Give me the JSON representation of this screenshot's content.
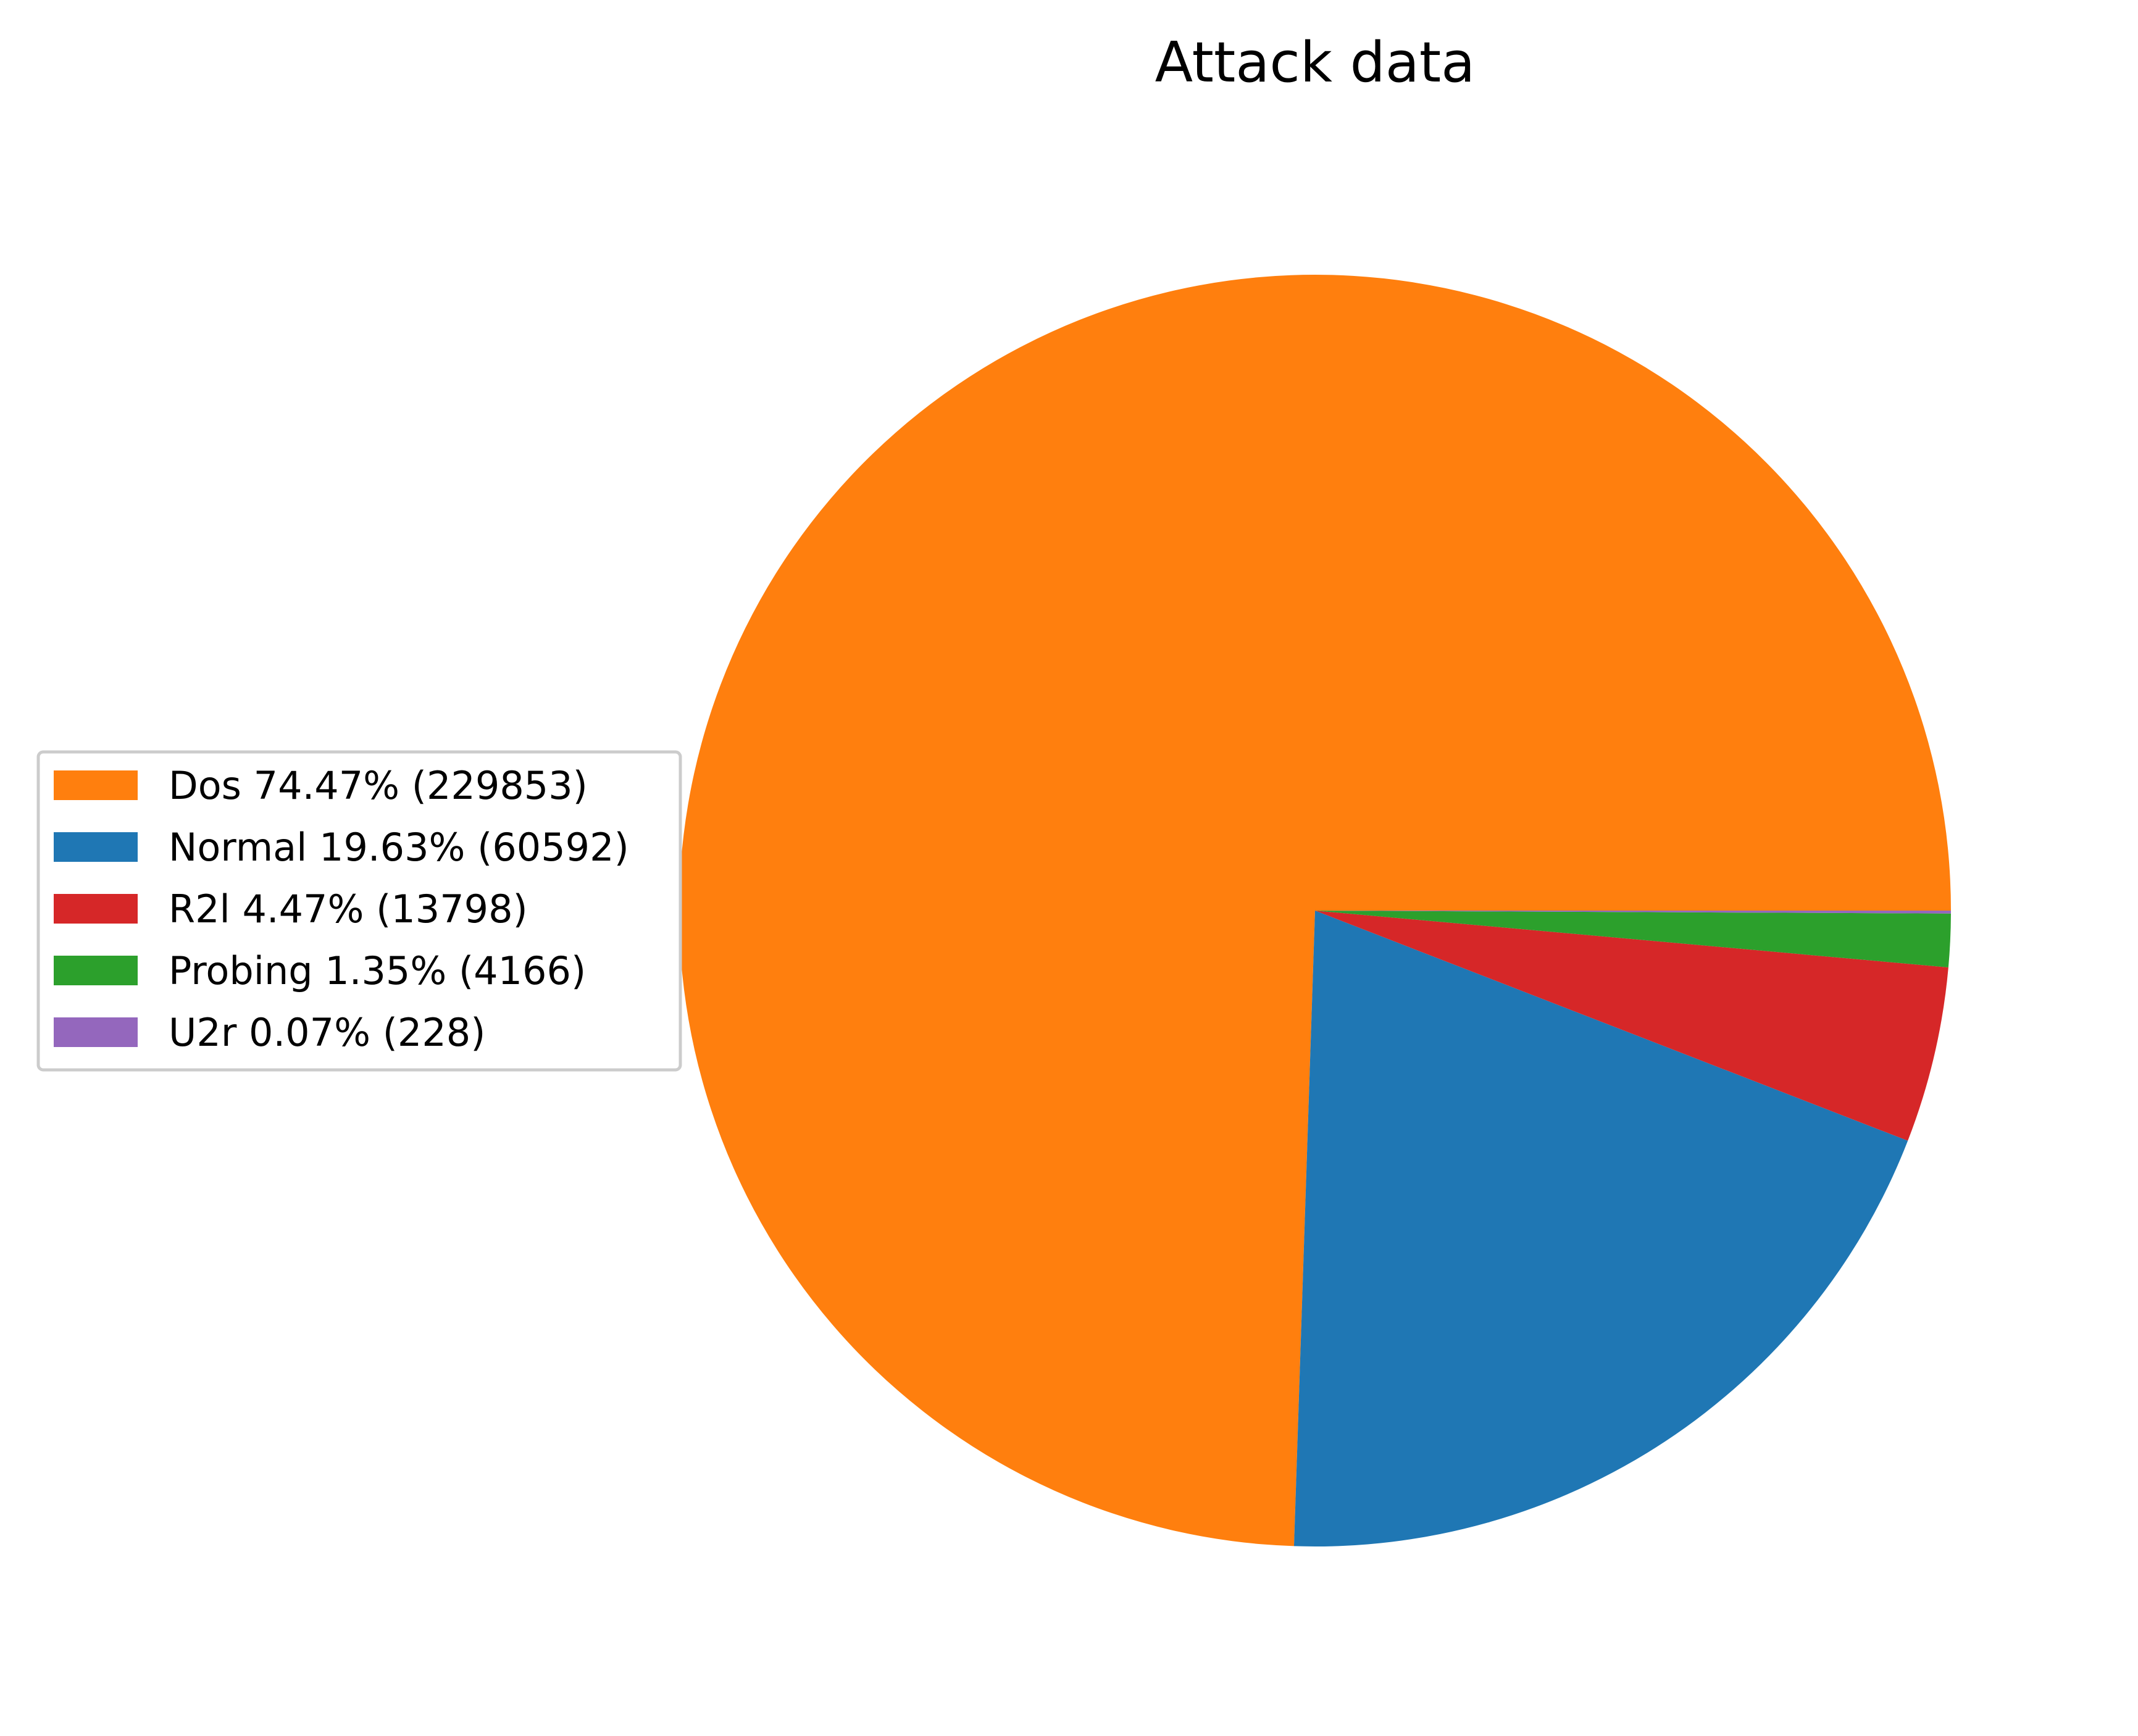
{
  "chart_data": {
    "type": "pie",
    "title": "Attack data",
    "slices": [
      {
        "label": "Dos",
        "value": 229853,
        "percent": "74.47%",
        "color": "#ff7f0e",
        "legend": "Dos 74.47% (229853)"
      },
      {
        "label": "Normal",
        "value": 60592,
        "percent": "19.63%",
        "color": "#1f77b4",
        "legend": "Normal 19.63% (60592)"
      },
      {
        "label": "R2l",
        "value": 13798,
        "percent": "4.47%",
        "color": "#d62728",
        "legend": "R2l 4.47% (13798)"
      },
      {
        "label": "Probing",
        "value": 4166,
        "percent": "1.35%",
        "color": "#2ca02c",
        "legend": "Probing 1.35% (4166)"
      },
      {
        "label": "U2r",
        "value": 228,
        "percent": "0.07%",
        "color": "#9467bd",
        "legend": "U2r 0.07% (228)"
      }
    ],
    "legend_position": "center-left"
  }
}
